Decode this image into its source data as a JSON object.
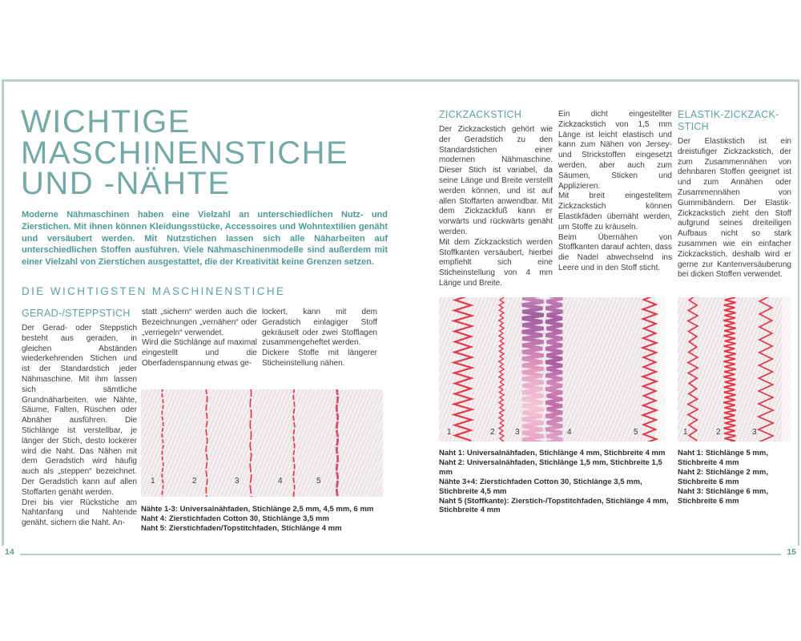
{
  "colors": {
    "teal_heading": "#5fa0a1",
    "teal_title": "#74a9a8",
    "teal_intro": "#4f989a",
    "frame": "#b7cecb",
    "stitch_red": "#df3a4a",
    "stitch_pink": "#d64f72",
    "fabric": "#f1eaed",
    "body_text": "#3d3d3d"
  },
  "footer": {
    "left_page_number": "14",
    "right_page_number": "15"
  },
  "page_left": {
    "title": "WICHTIGE\nMASCHINENSTICHE\nUND -NÄHTE",
    "intro": "Moderne Nähmaschinen haben eine Vielzahl an unterschiedlichen Nutz- und Zierstichen. Mit ihnen können Kleidungsstücke, Accessoires und Wohntextilien genäht und versäubert werden. Mit Nutzstichen lassen sich alle Näharbeiten auf unterschiedlichen Stoffen ausführen. Viele Nähmaschinenmodelle sind außerdem mit einer Vielzahl von Zierstichen ausgestattet, die der Kreativität keine Grenzen setzen.",
    "section_heading": "DIE WICHTIGSTEN MASCHINENSTICHE",
    "article": {
      "heading": "GERAD-/STEPPSTICH",
      "col1": "Der Gerad- oder Steppstich besteht aus geraden, in gleichen Abständen wiederkehrenden Stichen und ist der Standardstich jeder Nähmaschine. Mit ihm lassen sich sämtliche Grundnäharbeiten, wie Nähte, Säume, Falten, Rüschen oder Abnäher ausführen. Die Stichlänge ist verstellbar, je länger der Stich, desto lockerer wird die Naht. Das Nähen mit dem Geradstich wird häufig auch als „steppen“ bezeichnet. Der Geradstich kann auf allen Stoffarten genäht werden.\nDrei bis vier Rückstiche am Nahtanfang und Nahtende genäht, sichern die Naht. An-",
      "col2": "statt „sichern“ werden auch die Bezeichnungen „vernähen“ oder „verriegeln“ verwendet.\nWird die Stichlänge auf maximal eingestellt und die Oberfadenspannung etwas ge-",
      "col3": "lockert, kann mit dem Geradstich einlagiger Stoff gekräuselt oder zwei Stofflagen zusammengeheftet werden.\nDickere Stoffe mit längerer Sticheinstellung nähen."
    },
    "figure": {
      "stitch_labels": [
        "1",
        "2",
        "3",
        "4",
        "5"
      ],
      "caption_lines": [
        "Nähte 1-3: Universalnähfaden, Stichlänge 2,5 mm, 4,5 mm, 6 mm",
        "Naht 4: Zierstichfaden Cotton 30, Stichlänge 3,5 mm",
        "Naht 5: Zierstichfaden/Topstitchfaden, Stichlänge 4 mm"
      ]
    }
  },
  "page_right": {
    "article_zigzag": {
      "heading": "ZICKZACKSTICH",
      "col1": "Der Zickzackstich gehört wie der Geradstich zu den Standardstichen einer modernen Nähmaschine. Dieser Stich ist variabel, da seine Länge und Breite verstellt werden können, und ist auf allen Stoffarten anwendbar. Mit dem Zickzackfuß kann er vorwärts und rückwärts genäht werden.\nMit dem Zickzackstich werden Stoffkanten versäubert, hierbei empfiehlt sich eine Sticheinstellung von 4 mm Länge und Breite.",
      "col2": "Ein dicht eingestellter Zickzackstich von 1,5 mm Länge ist leicht elastisch und kann zum Nähen von Jersey- und Strickstoffen eingesetzt werden, aber auch zum Säumen, Sticken und Applizieren.\nMit breit eingestelltem Zickzackstich können Elastikfäden übernäht werden, um Stoffe zu kräuseln.\nBeim Übernähen von Stoffkanten darauf achten, dass die Nadel abwechselnd ins Leere und in den Stoff sticht."
    },
    "article_elastic": {
      "heading": "ELASTIK-ZICKZACK-STICH",
      "body": "Der Elastikstich ist ein dreistufiger Zickzackstich, der zum Zusammennähen von dehnbaren Stoffen geeignet ist und zum Annähen oder Zusammennähen von Gummibändern. Der Elastik-Zickzackstich zieht den Stoff aufgrund seines dreiteiligen Aufbaus nicht so stark zusammen wie ein einfacher Zickzackstich, deshalb wird er gerne zur Kantenversäuberung bei dicken Stoffen verwendet."
    },
    "figure_zigzag": {
      "stitch_labels": [
        "1",
        "2",
        "3",
        "4",
        "5"
      ],
      "caption_lines": [
        "Naht 1: Universalnähfaden, Stichlänge 4 mm, Stichbreite 4 mm",
        "Naht 2: Universalnähfaden, Stichlänge 1,5 mm, Stichbreite 1,5 mm",
        "Nähte 3+4: Zierstichfaden Cotton 30, Stichlänge 3,5 mm, Stichbreite 4,5 mm",
        "Naht 5 (Stoffkante): Zierstich-/Topstitchfaden, Stichlänge 4 mm, Stichbreite 4 mm"
      ]
    },
    "figure_elastic": {
      "stitch_labels": [
        "1",
        "2",
        "3"
      ],
      "caption_lines": [
        "Naht 1: Stichlänge 5 mm, Stichbreite 4 mm",
        "Naht 2: Stichlänge 2 mm, Stichbreite 6 mm",
        "Naht 3: Stichlänge 6 mm, Stichbreite 6 mm"
      ]
    }
  }
}
